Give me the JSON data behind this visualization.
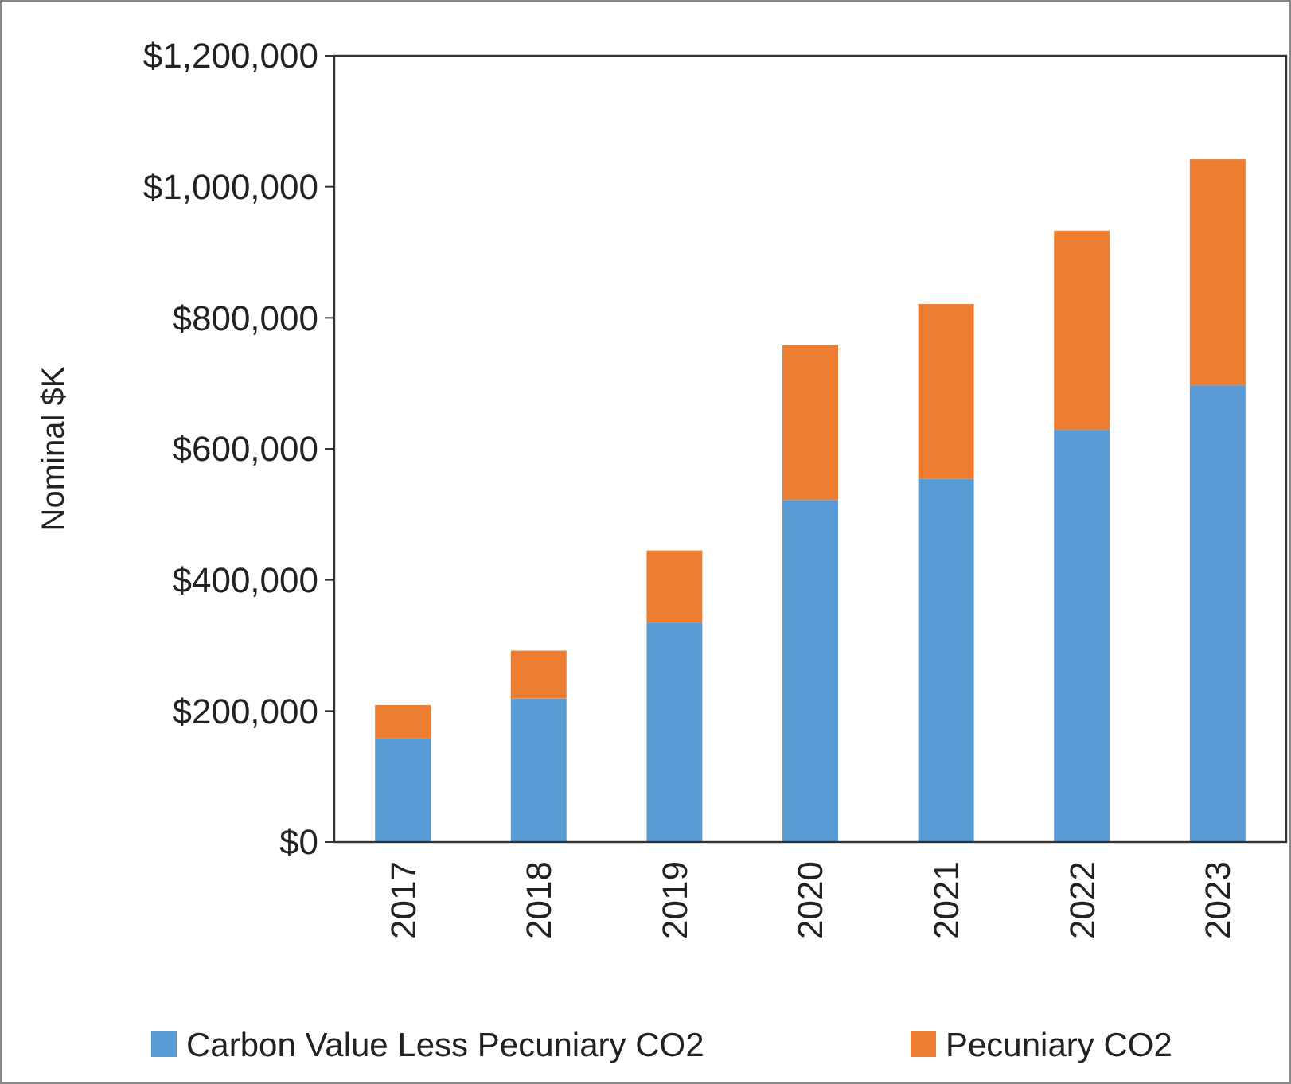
{
  "chart_data": {
    "type": "bar",
    "ylabel": "Nominal $K",
    "stacked": true,
    "legend": "bottom",
    "grid": false,
    "categories": [
      "2017",
      "2018",
      "2019",
      "2020",
      "2021",
      "2022",
      "2023"
    ],
    "series": [
      {
        "name": "Carbon Value Less Pecuniary CO2",
        "color": "#5b9bd5",
        "values": [
          158000,
          219000,
          335000,
          522000,
          554000,
          629000,
          697000
        ]
      },
      {
        "name": "Pecuniary CO2",
        "color": "#ed7d31",
        "values": [
          51000,
          73000,
          110000,
          236000,
          267000,
          304000,
          345000
        ]
      }
    ],
    "ylim": [
      0,
      1200000
    ],
    "yticks": [
      {
        "value": 0,
        "label": "$0"
      },
      {
        "value": 200000,
        "label": "$200,000"
      },
      {
        "value": 400000,
        "label": "$400,000"
      },
      {
        "value": 600000,
        "label": "$600,000"
      },
      {
        "value": 800000,
        "label": "$800,000"
      },
      {
        "value": 1000000,
        "label": "$1,000,000"
      },
      {
        "value": 1200000,
        "label": "$1,200,000"
      }
    ]
  }
}
